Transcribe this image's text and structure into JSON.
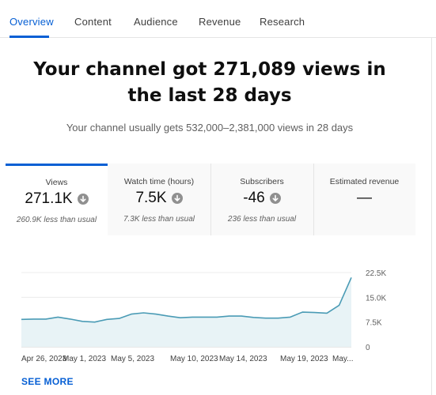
{
  "tabs": [
    {
      "label": "Overview",
      "active": true
    },
    {
      "label": "Content",
      "active": false
    },
    {
      "label": "Audience",
      "active": false
    },
    {
      "label": "Revenue",
      "active": false
    },
    {
      "label": "Research",
      "active": false
    }
  ],
  "headline": "Your channel got 271,089 views in the last 28 days",
  "subline": "Your channel usually gets 532,000–2,381,000 views in 28 days",
  "metrics": [
    {
      "label": "Views",
      "value": "271.1K",
      "note": "260.9K less than usual",
      "icon": "arrow-down-circle-icon"
    },
    {
      "label": "Watch time (hours)",
      "value": "7.5K",
      "note": "7.3K less than usual",
      "icon": "arrow-down-circle-icon"
    },
    {
      "label": "Subscribers",
      "value": "-46",
      "note": "236 less than usual",
      "icon": "arrow-down-circle-icon"
    },
    {
      "label": "Estimated revenue",
      "value": "—",
      "note": ""
    }
  ],
  "chart_data": {
    "type": "area",
    "series": [
      {
        "values": [
          8300,
          8400,
          8400,
          9000,
          8400,
          7700,
          7500,
          8300,
          8600,
          9900,
          10300,
          9900,
          9300,
          8800,
          9000,
          9000,
          9000,
          9300,
          9300,
          8900,
          8700,
          8700,
          9000,
          10500,
          10400,
          10200,
          12600,
          21000
        ]
      }
    ],
    "x_tick_labels": [
      "Apr 26, 2023",
      "May 1, 2023",
      "May 5, 2023",
      "May 10, 2023",
      "May 14, 2023",
      "May 19, 2023",
      "May..."
    ],
    "y_tick_labels": [
      "22.5K",
      "15.0K",
      "7.5K",
      "0"
    ],
    "y_ticks": [
      22500,
      15000,
      7500,
      0
    ],
    "ylim": [
      0,
      22500
    ],
    "grid": true,
    "line_color": "#4a9bb5",
    "fill_color": "#e8f3f6"
  },
  "see_more": "SEE MORE",
  "colors": {
    "accent": "#065fd4",
    "text": "#0f0f0f",
    "muted": "#606060"
  }
}
